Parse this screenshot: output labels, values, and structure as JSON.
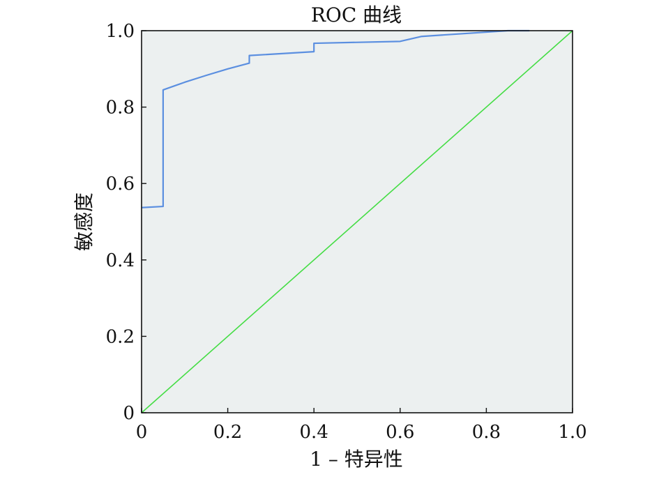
{
  "chart_data": {
    "type": "line",
    "title": "ROC 曲线",
    "xlabel": "1 – 特异性",
    "ylabel": "敏感度",
    "xlim": [
      0,
      1
    ],
    "ylim": [
      0,
      1
    ],
    "grid": false,
    "x_ticks": [
      0,
      0.2,
      0.4,
      0.6,
      0.8,
      1.0
    ],
    "x_tick_labels": [
      "0",
      "0.2",
      "0.4",
      "0.6",
      "0.8",
      "1.0"
    ],
    "y_ticks": [
      0,
      0.2,
      0.4,
      0.6,
      0.8,
      1.0
    ],
    "y_tick_labels": [
      "0",
      "0.2",
      "0.4",
      "0.6",
      "0.8",
      "1.0"
    ],
    "series": [
      {
        "color": "#5b8fe0",
        "x": [
          0,
          0.05,
          0.05,
          0.1,
          0.15,
          0.2,
          0.25,
          0.25,
          0.4,
          0.4,
          0.6,
          0.65,
          0.85,
          0.9
        ],
        "y": [
          0.537,
          0.54,
          0.845,
          0.865,
          0.883,
          0.9,
          0.915,
          0.935,
          0.945,
          0.967,
          0.972,
          0.985,
          1.0,
          1.0
        ]
      },
      {
        "color": "#44dd44",
        "x": [
          0,
          1
        ],
        "y": [
          0,
          1
        ]
      }
    ],
    "plot_background": "#ecf0f0"
  }
}
